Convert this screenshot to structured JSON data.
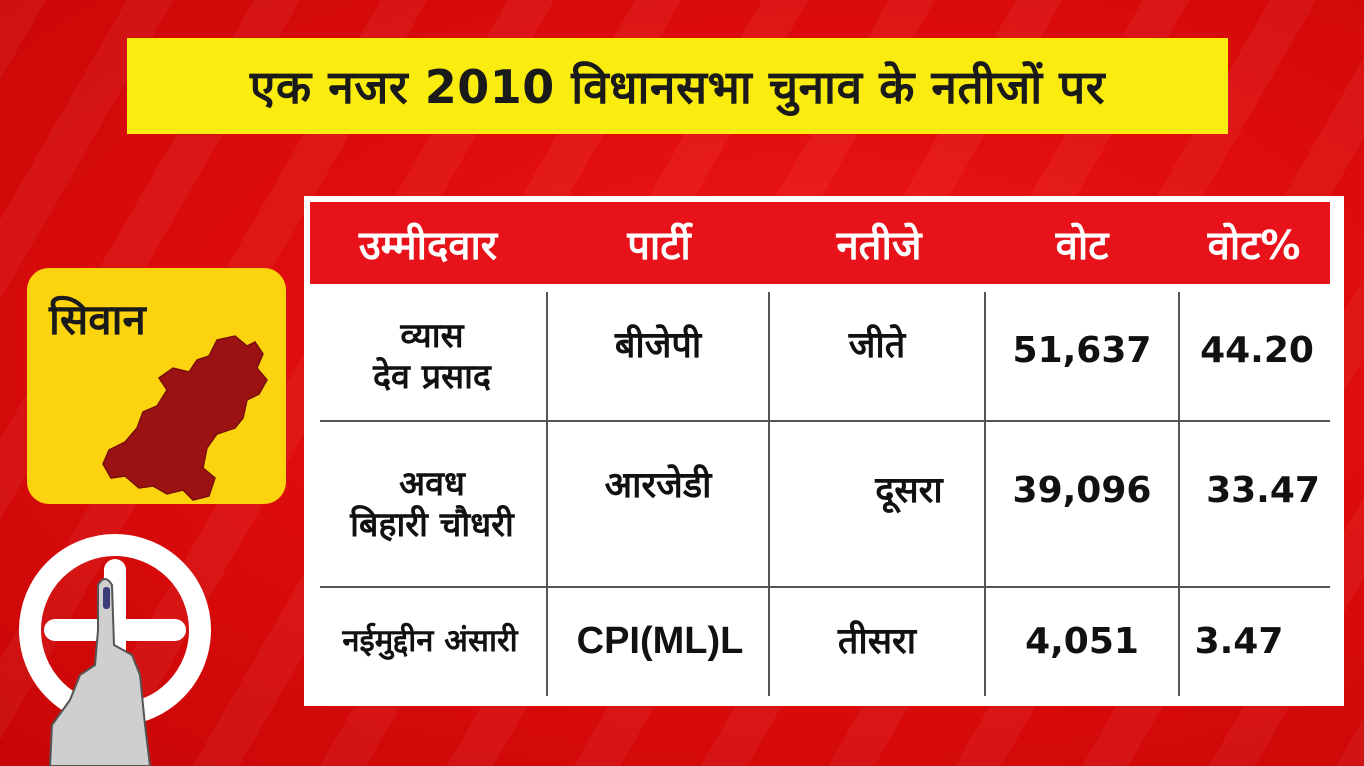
{
  "title": "एक नजर 2010 विधानसभा चुनाव के नतीजों पर",
  "district": {
    "name": "सिवान",
    "map_icon": "district-map-icon"
  },
  "symbol_icon": "election-swastika-inked-finger-icon",
  "colors": {
    "background": "#e00d0d",
    "banner": "#fbec10",
    "header_row": "#e8121a",
    "card": "#fbd40f",
    "map": "#9b1212"
  },
  "table": {
    "headers": [
      "उम्मीदवार",
      "पार्टी",
      "नतीजे",
      "वोट",
      "वोट%"
    ],
    "rows": [
      {
        "candidate": [
          "व्यास",
          "देव प्रसाद"
        ],
        "party": "बीजेपी",
        "result": "जीते",
        "votes": "51,637",
        "vote_pct": "44.20"
      },
      {
        "candidate": [
          "अवध",
          "बिहारी चौधरी"
        ],
        "party": "आरजेडी",
        "result": "दूसरा",
        "votes": "39,096",
        "vote_pct": "33.47"
      },
      {
        "candidate": [
          "नईमुद्दीन अंसारी"
        ],
        "party": "CPI(ML)L",
        "result": "तीसरा",
        "votes": "4,051",
        "vote_pct": "3.47"
      }
    ]
  }
}
